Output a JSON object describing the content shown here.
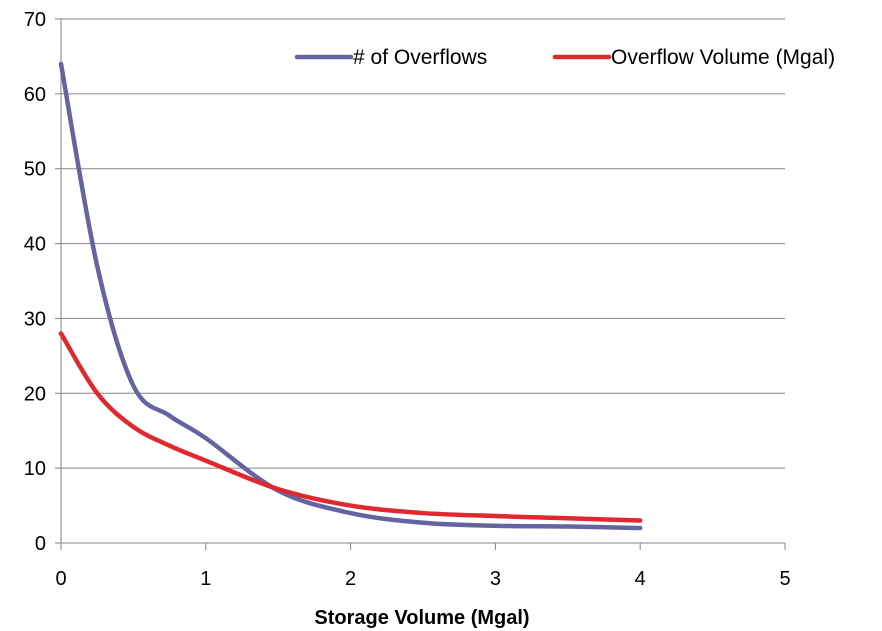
{
  "chart_data": {
    "type": "line",
    "title": "",
    "xlabel": "Storage Volume (Mgal)",
    "ylabel": "",
    "xlim": [
      0,
      5
    ],
    "ylim": [
      0,
      70
    ],
    "x_ticks": [
      "0",
      "1",
      "2",
      "3",
      "4",
      "5"
    ],
    "y_ticks": [
      "0",
      "10",
      "20",
      "30",
      "40",
      "50",
      "60",
      "70"
    ],
    "grid": "horizontal",
    "legend_position": "top-right",
    "smooth": true,
    "series": [
      {
        "name": "# of Overflows",
        "color": "#6464A0",
        "x": [
          0,
          0.25,
          0.5,
          0.75,
          1,
          1.5,
          2,
          2.5,
          3,
          3.5,
          4
        ],
        "y": [
          64,
          37,
          21,
          17,
          14,
          7,
          4,
          2.7,
          2.3,
          2.2,
          2
        ]
      },
      {
        "name": "Overflow Volume (Mgal)",
        "color": "#E0282E",
        "x": [
          0,
          0.25,
          0.5,
          0.75,
          1,
          1.5,
          2,
          2.5,
          3,
          3.5,
          4
        ],
        "y": [
          28,
          20,
          15.5,
          13,
          11,
          7.2,
          5,
          4,
          3.6,
          3.3,
          3
        ]
      }
    ]
  }
}
